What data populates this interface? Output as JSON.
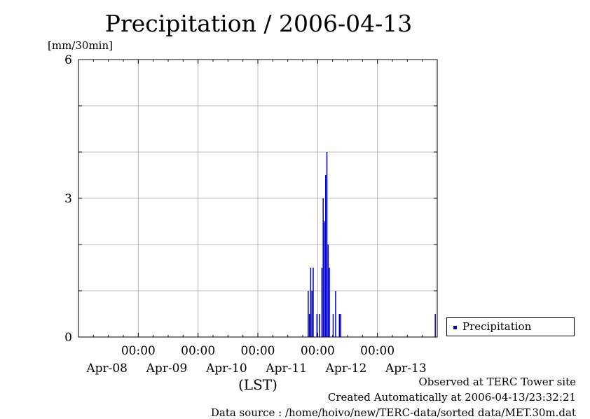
{
  "chart_data": {
    "type": "bar",
    "title": "Precipitation / 2006-04-13",
    "ylabel": "[mm/30min]",
    "xlabel": "(LST)",
    "ylim": [
      0,
      6
    ],
    "y_ticks": [
      "0",
      "3",
      "6"
    ],
    "xlim_days": [
      0,
      6
    ],
    "x_time_labels": [
      "00:00",
      "00:00",
      "00:00",
      "00:00",
      "00:00"
    ],
    "x_date_labels": [
      "Apr-08",
      "Apr-09",
      "Apr-10",
      "Apr-11",
      "Apr-12",
      "Apr-13"
    ],
    "grid": true,
    "legend_position": "right",
    "series": [
      {
        "name": "Precipitation",
        "color": "#0000cc",
        "points": [
          {
            "t": "2006-04-11 20:30",
            "v": 1.0
          },
          {
            "t": "2006-04-11 21:00",
            "v": 0.5
          },
          {
            "t": "2006-04-11 21:30",
            "v": 1.5
          },
          {
            "t": "2006-04-11 22:00",
            "v": 1.0
          },
          {
            "t": "2006-04-11 22:30",
            "v": 1.5
          },
          {
            "t": "2006-04-12 00:00",
            "v": 0.5
          },
          {
            "t": "2006-04-12 01:00",
            "v": 0.5
          },
          {
            "t": "2006-04-12 02:00",
            "v": 1.5
          },
          {
            "t": "2006-04-12 02:30",
            "v": 3.0
          },
          {
            "t": "2006-04-12 03:00",
            "v": 2.5
          },
          {
            "t": "2006-04-12 03:30",
            "v": 3.5
          },
          {
            "t": "2006-04-12 04:00",
            "v": 4.0
          },
          {
            "t": "2006-04-12 04:30",
            "v": 2.0
          },
          {
            "t": "2006-04-12 05:00",
            "v": 1.5
          },
          {
            "t": "2006-04-12 06:30",
            "v": 0.5
          },
          {
            "t": "2006-04-12 07:30",
            "v": 1.0
          },
          {
            "t": "2006-04-12 09:00",
            "v": 0.5
          },
          {
            "t": "2006-04-12 09:30",
            "v": 0.5
          },
          {
            "t": "2006-04-13 23:30",
            "v": 0.5
          }
        ]
      }
    ]
  },
  "footer": {
    "observed": "Observed at TERC Tower site",
    "created": "Created Automatically at 2006-04-13/23:32:21",
    "source": "Data source : /home/hoivo/new/TERC-data/sorted  data/MET.30m.dat"
  }
}
